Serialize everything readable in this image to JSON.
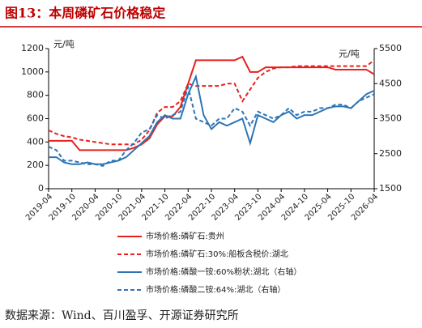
{
  "header": {
    "title": "图13：本周磷矿石价格稳定"
  },
  "chart_data": {
    "type": "line",
    "y_label": "元/吨",
    "y2_label": "元/吨",
    "x": [
      "2019-04",
      "2019-06",
      "2019-08",
      "2019-10",
      "2019-12",
      "2020-02",
      "2020-04",
      "2020-06",
      "2020-08",
      "2020-10",
      "2020-12",
      "2021-02",
      "2021-04",
      "2021-06",
      "2021-08",
      "2021-10",
      "2021-12",
      "2022-02",
      "2022-04",
      "2022-06",
      "2022-08",
      "2022-10",
      "2022-12",
      "2023-02",
      "2023-04",
      "2023-06",
      "2023-08",
      "2023-10",
      "2023-12",
      "2024-02",
      "2024-04",
      "2024-06",
      "2024-08",
      "2024-10",
      "2024-12",
      "2025-02",
      "2025-04",
      "2025-06",
      "2025-08",
      "2025-10",
      "2025-12",
      "2026-02",
      "2026-04"
    ],
    "xlim": [
      "2019-04",
      "2026-04"
    ],
    "xticks": [
      "2019-04",
      "2019-10",
      "2020-04",
      "2020-10",
      "2021-04",
      "2021-10",
      "2022-04",
      "2022-10",
      "2023-04",
      "2023-10",
      "2024-04",
      "2024-10",
      "2025-04",
      "2025-10",
      "2026-04"
    ],
    "ylim": [
      0,
      1200
    ],
    "yticks": [
      0,
      200,
      400,
      600,
      800,
      1000,
      1200
    ],
    "y2lim": [
      1500,
      5500
    ],
    "y2ticks": [
      1500,
      2500,
      3500,
      4500,
      5500
    ],
    "series": [
      {
        "name": "市场价格:磷矿石:贵州",
        "color": "#e8211e",
        "dash": false,
        "values": [
          410,
          410,
          410,
          410,
          330,
          330,
          330,
          330,
          330,
          330,
          330,
          350,
          380,
          430,
          550,
          620,
          620,
          700,
          900,
          1100,
          1100,
          1100,
          1100,
          1100,
          1100,
          1130,
          1000,
          1000,
          1040,
          1040,
          1040,
          1040,
          1040,
          1040,
          1040,
          1040,
          1040,
          1020,
          1020,
          1020,
          1020,
          1020,
          980
        ]
      },
      {
        "name": "市场价格:磷矿石:30%:船板含税价:湖北",
        "color": "#e8211e",
        "dash": true,
        "values": [
          500,
          470,
          450,
          440,
          420,
          410,
          400,
          390,
          380,
          380,
          380,
          380,
          420,
          500,
          650,
          700,
          700,
          750,
          900,
          880,
          880,
          880,
          880,
          900,
          900,
          750,
          850,
          950,
          1000,
          1030,
          1040,
          1040,
          1050,
          1050,
          1050,
          1050,
          1050,
          1050,
          1050,
          1050,
          1050,
          1050,
          1100
        ]
      },
      {
        "name": "市场价格:磷酸一铵:60%粉状:湖北（右轴）",
        "color": "#2e75b6",
        "dash": false,
        "axis": "y2",
        "values": [
          2400,
          2400,
          2250,
          2200,
          2200,
          2250,
          2200,
          2200,
          2250,
          2300,
          2400,
          2600,
          2800,
          3000,
          3400,
          3600,
          3500,
          3500,
          4200,
          4700,
          3600,
          3200,
          3400,
          3300,
          3400,
          3500,
          2800,
          3600,
          3500,
          3400,
          3600,
          3700,
          3500,
          3600,
          3600,
          3700,
          3800,
          3850,
          3850,
          3800,
          4000,
          4200,
          4300
        ]
      },
      {
        "name": "市场价格:磷酸二铵:64%:湖北（右轴）",
        "color": "#2e75b6",
        "dash": true,
        "axis": "y2",
        "values": [
          2700,
          2600,
          2300,
          2300,
          2250,
          2200,
          2200,
          2150,
          2300,
          2300,
          2600,
          2800,
          3100,
          3200,
          3600,
          3500,
          3600,
          3700,
          4400,
          3500,
          3400,
          3300,
          3500,
          3500,
          3800,
          3700,
          3300,
          3700,
          3600,
          3500,
          3600,
          3800,
          3600,
          3700,
          3700,
          3800,
          3800,
          3900,
          3900,
          3800,
          4000,
          4100,
          4200
        ]
      }
    ]
  },
  "footer": {
    "source": "数据来源：Wind、百川盈孚、开源证券研究所"
  }
}
